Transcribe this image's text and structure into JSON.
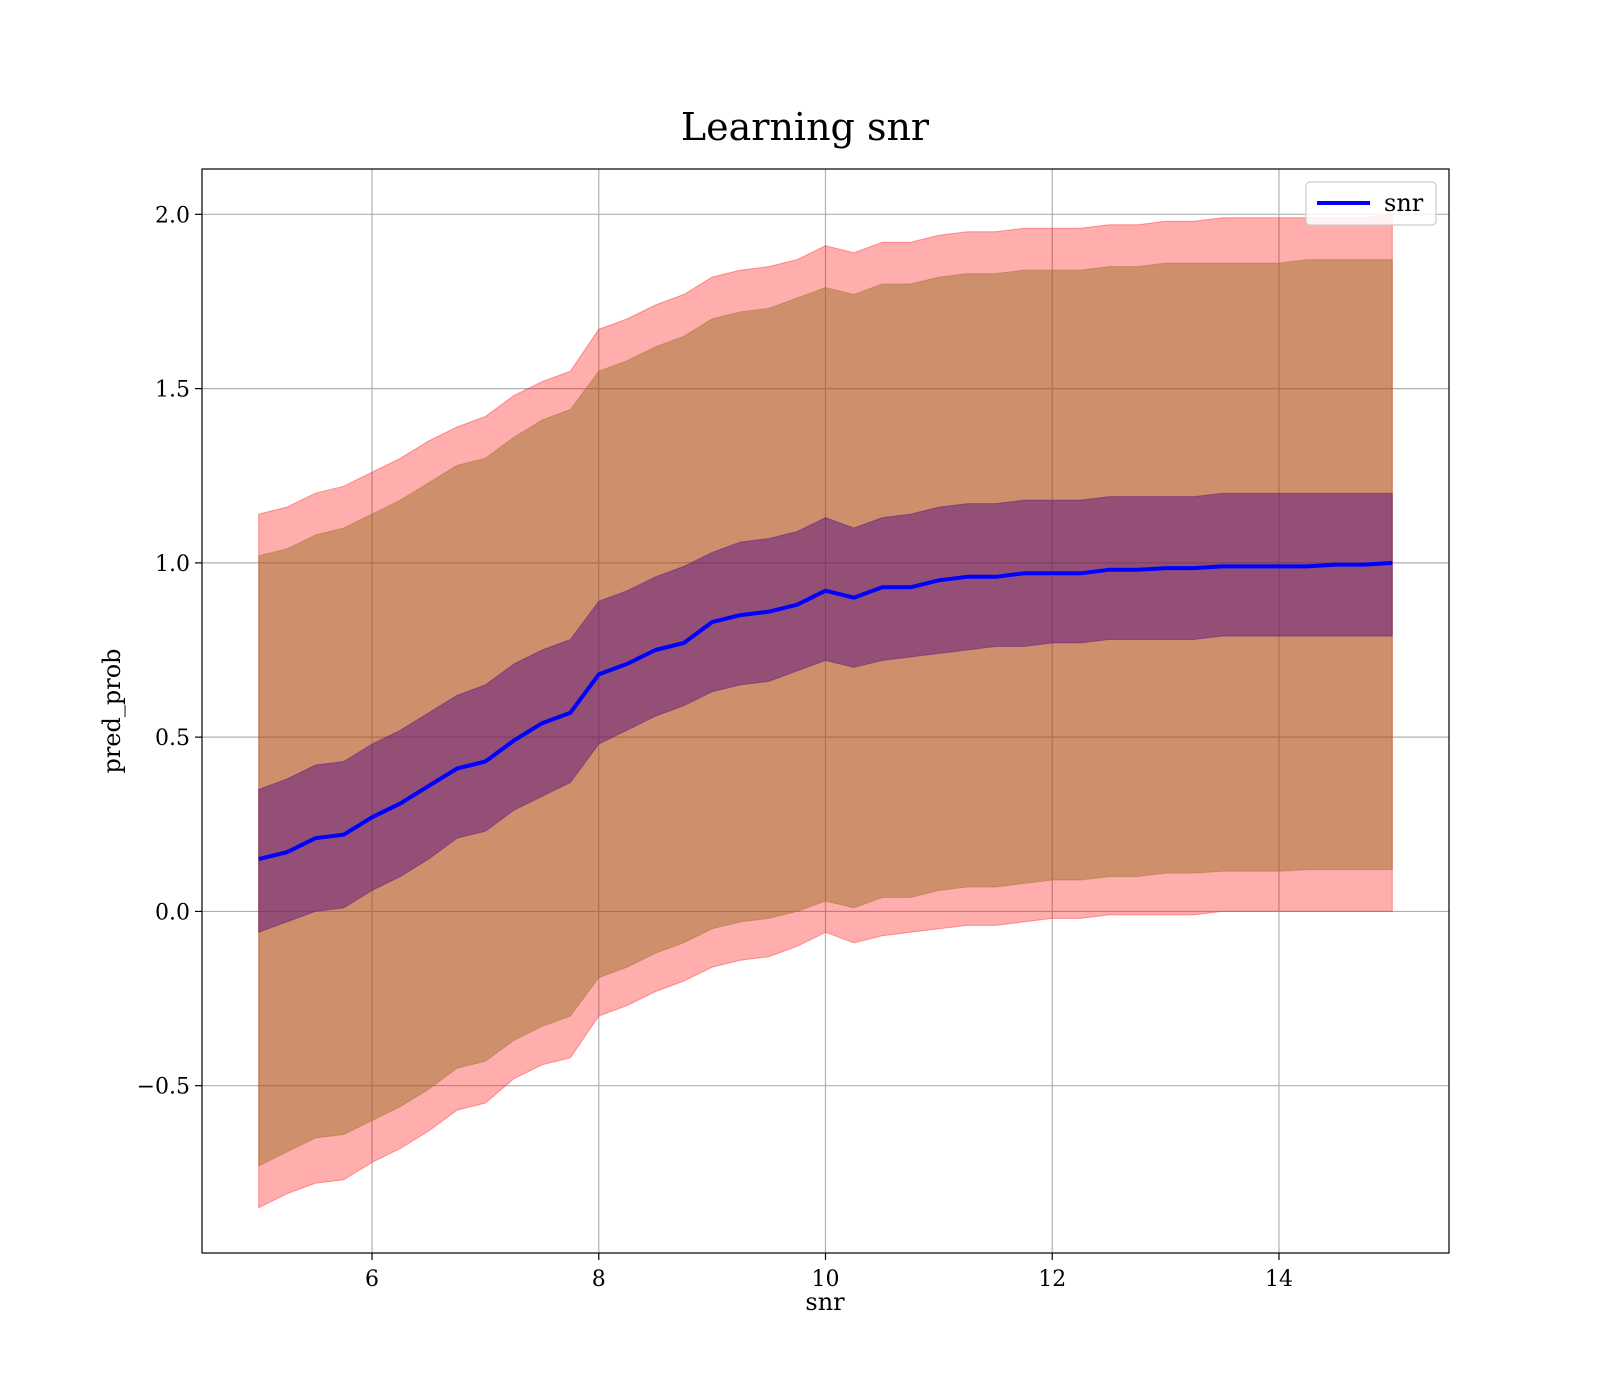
{
  "chart_data": {
    "type": "line",
    "title": "Learning snr",
    "xlabel": "snr",
    "ylabel": "pred_prob",
    "xlim": [
      4.5,
      15.5
    ],
    "ylim": [
      -0.98,
      2.13
    ],
    "xticks": [
      6,
      8,
      10,
      12,
      14
    ],
    "yticks": [
      -0.5,
      0.0,
      0.5,
      1.0,
      1.5,
      2.0
    ],
    "ytick_labels": [
      "−0.5",
      "0.0",
      "0.5",
      "1.0",
      "1.5",
      "2.0"
    ],
    "grid": true,
    "legend": {
      "position": "top-right",
      "entries": [
        "snr"
      ]
    },
    "colors": {
      "line": "#0000ff",
      "outer_band": "#ff0000",
      "middle_band": "#8b6914",
      "inner_band": "#4b0082"
    },
    "x": [
      5.0,
      5.25,
      5.5,
      5.75,
      6.0,
      6.25,
      6.5,
      6.75,
      7.0,
      7.25,
      7.5,
      7.75,
      8.0,
      8.25,
      8.5,
      8.75,
      9.0,
      9.25,
      9.5,
      9.75,
      10.0,
      10.25,
      10.5,
      10.75,
      11.0,
      11.25,
      11.5,
      11.75,
      12.0,
      12.25,
      12.5,
      12.75,
      13.0,
      13.25,
      13.5,
      13.75,
      14.0,
      14.25,
      14.5,
      14.75,
      15.0
    ],
    "series": [
      {
        "name": "snr",
        "values": [
          0.15,
          0.17,
          0.21,
          0.22,
          0.27,
          0.31,
          0.36,
          0.41,
          0.43,
          0.49,
          0.54,
          0.57,
          0.68,
          0.71,
          0.75,
          0.77,
          0.83,
          0.85,
          0.86,
          0.88,
          0.92,
          0.9,
          0.93,
          0.93,
          0.95,
          0.96,
          0.96,
          0.97,
          0.97,
          0.97,
          0.98,
          0.98,
          0.985,
          0.985,
          0.99,
          0.99,
          0.99,
          0.99,
          0.995,
          0.995,
          1.0
        ]
      }
    ],
    "bands": [
      {
        "lower": [
          -0.85,
          -0.81,
          -0.78,
          -0.77,
          -0.72,
          -0.68,
          -0.63,
          -0.57,
          -0.55,
          -0.48,
          -0.44,
          -0.42,
          -0.3,
          -0.27,
          -0.23,
          -0.2,
          -0.16,
          -0.14,
          -0.13,
          -0.1,
          -0.06,
          -0.09,
          -0.07,
          -0.06,
          -0.05,
          -0.04,
          -0.04,
          -0.03,
          -0.02,
          -0.02,
          -0.01,
          -0.01,
          -0.01,
          -0.01,
          0.0,
          0.0,
          0.0,
          0.0,
          0.0,
          0.0,
          0.0
        ],
        "upper": [
          1.14,
          1.16,
          1.2,
          1.22,
          1.26,
          1.3,
          1.35,
          1.39,
          1.42,
          1.48,
          1.52,
          1.55,
          1.67,
          1.7,
          1.74,
          1.77,
          1.82,
          1.84,
          1.85,
          1.87,
          1.91,
          1.89,
          1.92,
          1.92,
          1.94,
          1.95,
          1.95,
          1.96,
          1.96,
          1.96,
          1.97,
          1.97,
          1.98,
          1.98,
          1.99,
          1.99,
          1.99,
          1.99,
          1.99,
          1.99,
          2.0
        ]
      },
      {
        "lower": [
          -0.73,
          -0.69,
          -0.65,
          -0.64,
          -0.6,
          -0.56,
          -0.51,
          -0.45,
          -0.43,
          -0.37,
          -0.33,
          -0.3,
          -0.19,
          -0.16,
          -0.12,
          -0.09,
          -0.05,
          -0.03,
          -0.02,
          0.0,
          0.03,
          0.01,
          0.04,
          0.04,
          0.06,
          0.07,
          0.07,
          0.08,
          0.09,
          0.09,
          0.1,
          0.1,
          0.11,
          0.11,
          0.115,
          0.115,
          0.115,
          0.12,
          0.12,
          0.12,
          0.12
        ],
        "upper": [
          1.02,
          1.04,
          1.08,
          1.1,
          1.14,
          1.18,
          1.23,
          1.28,
          1.3,
          1.36,
          1.41,
          1.44,
          1.55,
          1.58,
          1.62,
          1.65,
          1.7,
          1.72,
          1.73,
          1.76,
          1.79,
          1.77,
          1.8,
          1.8,
          1.82,
          1.83,
          1.83,
          1.84,
          1.84,
          1.84,
          1.85,
          1.85,
          1.86,
          1.86,
          1.86,
          1.86,
          1.86,
          1.87,
          1.87,
          1.87,
          1.87
        ]
      },
      {
        "lower": [
          -0.06,
          -0.03,
          0.0,
          0.01,
          0.06,
          0.1,
          0.15,
          0.21,
          0.23,
          0.29,
          0.33,
          0.37,
          0.48,
          0.52,
          0.56,
          0.59,
          0.63,
          0.65,
          0.66,
          0.69,
          0.72,
          0.7,
          0.72,
          0.73,
          0.74,
          0.75,
          0.76,
          0.76,
          0.77,
          0.77,
          0.78,
          0.78,
          0.78,
          0.78,
          0.79,
          0.79,
          0.79,
          0.79,
          0.79,
          0.79,
          0.79
        ],
        "upper": [
          0.35,
          0.38,
          0.42,
          0.43,
          0.48,
          0.52,
          0.57,
          0.62,
          0.65,
          0.71,
          0.75,
          0.78,
          0.89,
          0.92,
          0.96,
          0.99,
          1.03,
          1.06,
          1.07,
          1.09,
          1.13,
          1.1,
          1.13,
          1.14,
          1.16,
          1.17,
          1.17,
          1.18,
          1.18,
          1.18,
          1.19,
          1.19,
          1.19,
          1.19,
          1.2,
          1.2,
          1.2,
          1.2,
          1.2,
          1.2,
          1.2
        ]
      }
    ]
  }
}
